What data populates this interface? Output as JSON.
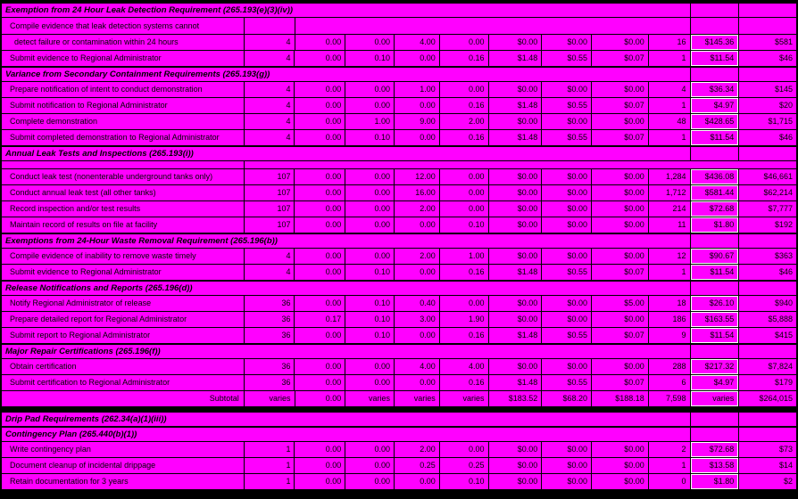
{
  "document": {
    "kind": "regulatory-burden-table",
    "colors": {
      "cell_background": "#ff00ff",
      "gridline": "#000000",
      "text": "#000000",
      "highlight_border": "#ffffff"
    },
    "value_columns": 11,
    "rows": [
      {
        "type": "section",
        "label": "Exemption from 24 Hour Leak Detection Requirement (265.193(e)(3)(iv))"
      },
      {
        "type": "cont",
        "label": "Compile evidence that leak detection systems cannot"
      },
      {
        "type": "item",
        "indent": 2,
        "label": "detect failure or contamination within 24 hours",
        "values": [
          "4",
          "0.00",
          "0.00",
          "4.00",
          "0.00",
          "$0.00",
          "$0.00",
          "$0.00",
          "16",
          "$145.36",
          "$581"
        ]
      },
      {
        "type": "item",
        "label": "Submit evidence to Regional Administrator",
        "values": [
          "4",
          "0.00",
          "0.10",
          "0.00",
          "0.16",
          "$1.48",
          "$0.55",
          "$0.07",
          "1",
          "$11.54",
          "$46"
        ]
      },
      {
        "type": "section",
        "label": "Variance from Secondary Containment Requirements (265.193(g))"
      },
      {
        "type": "item",
        "label": "Prepare notification of intent to conduct demonstration",
        "values": [
          "4",
          "0.00",
          "0.00",
          "1.00",
          "0.00",
          "$0.00",
          "$0.00",
          "$0.00",
          "4",
          "$36.34",
          "$145"
        ]
      },
      {
        "type": "item",
        "label": "Submit notification to Regional Administrator",
        "values": [
          "4",
          "0.00",
          "0.00",
          "0.00",
          "0.16",
          "$1.48",
          "$0.55",
          "$0.07",
          "1",
          "$4.97",
          "$20"
        ]
      },
      {
        "type": "item",
        "label": "Complete demonstration",
        "values": [
          "4",
          "0.00",
          "1.00",
          "9.00",
          "2.00",
          "$0.00",
          "$0.00",
          "$0.00",
          "48",
          "$428.65",
          "$1,715"
        ]
      },
      {
        "type": "item",
        "label": "Submit completed demonstration to Regional Administrator",
        "values": [
          "4",
          "0.00",
          "0.10",
          "0.00",
          "0.16",
          "$1.48",
          "$0.55",
          "$0.07",
          "1",
          "$11.54",
          "$46"
        ]
      },
      {
        "type": "section",
        "label": "Annual Leak Tests and Inspections (265.193(i))"
      },
      {
        "type": "spacer"
      },
      {
        "type": "item",
        "label": "Conduct leak test (nonenterable underground tanks only)",
        "values": [
          "107",
          "0.00",
          "0.00",
          "12.00",
          "0.00",
          "$0.00",
          "$0.00",
          "$0.00",
          "1,284",
          "$436.08",
          "$46,661"
        ]
      },
      {
        "type": "item",
        "label": "Conduct annual leak test (all other tanks)",
        "values": [
          "107",
          "0.00",
          "0.00",
          "16.00",
          "0.00",
          "$0.00",
          "$0.00",
          "$0.00",
          "1,712",
          "$581.44",
          "$62,214"
        ]
      },
      {
        "type": "item",
        "label": "Record inspection and/or test results",
        "values": [
          "107",
          "0.00",
          "0.00",
          "2.00",
          "0.00",
          "$0.00",
          "$0.00",
          "$0.00",
          "214",
          "$72.68",
          "$7,777"
        ]
      },
      {
        "type": "item",
        "label": "Maintain record of results on file at facility",
        "values": [
          "107",
          "0.00",
          "0.00",
          "0.00",
          "0.10",
          "$0.00",
          "$0.00",
          "$0.00",
          "11",
          "$1.80",
          "$192"
        ]
      },
      {
        "type": "section",
        "label": "Exemptions from 24-Hour Waste Removal Requirement (265.196(b))"
      },
      {
        "type": "item",
        "label": "Compile evidence of inability to remove waste timely",
        "values": [
          "4",
          "0.00",
          "0.00",
          "2.00",
          "1.00",
          "$0.00",
          "$0.00",
          "$0.00",
          "12",
          "$90.67",
          "$363"
        ]
      },
      {
        "type": "item",
        "label": "Submit evidence to Regional Administrator",
        "values": [
          "4",
          "0.00",
          "0.10",
          "0.00",
          "0.16",
          "$1.48",
          "$0.55",
          "$0.07",
          "1",
          "$11.54",
          "$46"
        ]
      },
      {
        "type": "section",
        "label": "Release Notifications and Reports (265.196(d))"
      },
      {
        "type": "item",
        "label": "Notify Regional Administrator of release",
        "values": [
          "36",
          "0.00",
          "0.10",
          "0.40",
          "0.00",
          "$0.00",
          "$0.00",
          "$5.00",
          "18",
          "$26.10",
          "$940"
        ]
      },
      {
        "type": "item",
        "label": "Prepare detailed report for Regional Administrator",
        "values": [
          "36",
          "0.17",
          "0.10",
          "3.00",
          "1.90",
          "$0.00",
          "$0.00",
          "$0.00",
          "186",
          "$163.55",
          "$5,888"
        ]
      },
      {
        "type": "item",
        "label": "Submit report to Regional Administrator",
        "values": [
          "36",
          "0.00",
          "0.10",
          "0.00",
          "0.16",
          "$1.48",
          "$0.55",
          "$0.07",
          "9",
          "$11.54",
          "$415"
        ]
      },
      {
        "type": "section",
        "label": "Major Repair Certifications (265.196(f))"
      },
      {
        "type": "item",
        "label": "Obtain certification",
        "values": [
          "36",
          "0.00",
          "0.00",
          "4.00",
          "4.00",
          "$0.00",
          "$0.00",
          "$0.00",
          "288",
          "$217.32",
          "$7,824"
        ]
      },
      {
        "type": "item",
        "label": "Submit certification to Regional Administrator",
        "values": [
          "36",
          "0.00",
          "0.00",
          "0.00",
          "0.16",
          "$1.48",
          "$0.55",
          "$0.07",
          "6",
          "$4.97",
          "$179"
        ]
      },
      {
        "type": "subtotal",
        "label": "Subtotal",
        "values": [
          "varies",
          "0.00",
          "varies",
          "varies",
          "varies",
          "$183.52",
          "$68.20",
          "$188.18",
          "7,598",
          "varies",
          "$264,015"
        ]
      },
      {
        "type": "band"
      },
      {
        "type": "section",
        "label": "Drip Pad Requirements (262.34(a)(1)(iii))"
      },
      {
        "type": "section",
        "label": "Contingency Plan (265.440(b)(1))"
      },
      {
        "type": "item",
        "label": "Write contingency plan",
        "values": [
          "1",
          "0.00",
          "0.00",
          "2.00",
          "0.00",
          "$0.00",
          "$0.00",
          "$0.00",
          "2",
          "$72.68",
          "$73"
        ]
      },
      {
        "type": "item",
        "label": "Document cleanup of incidental drippage",
        "values": [
          "1",
          "0.00",
          "0.00",
          "0.25",
          "0.25",
          "$0.00",
          "$0.00",
          "$0.00",
          "1",
          "$13.58",
          "$14"
        ]
      },
      {
        "type": "item",
        "label": "Retain documentation for 3 years",
        "values": [
          "1",
          "0.00",
          "0.00",
          "0.00",
          "0.10",
          "$0.00",
          "$0.00",
          "$0.00",
          "0",
          "$1.80",
          "$2"
        ]
      }
    ]
  }
}
